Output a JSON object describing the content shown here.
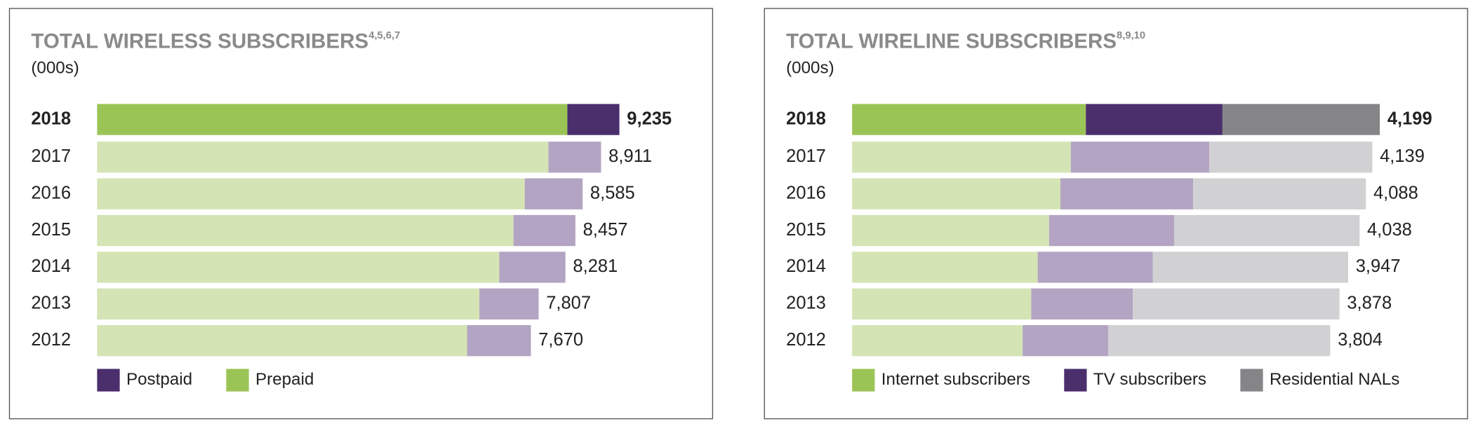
{
  "chart_data": [
    {
      "type": "bar",
      "orientation": "horizontal",
      "stacked": true,
      "title": "TOTAL WIRELESS SUBSCRIBERS",
      "title_notes": "4,5,6,7",
      "subtitle": "(000s)",
      "categories": [
        "2018",
        "2017",
        "2016",
        "2015",
        "2014",
        "2013",
        "2012"
      ],
      "series": [
        {
          "name": "Postpaid",
          "color": "#4b2e6c",
          "light_color": "#b4a4c3",
          "values": [
            920,
            930,
            1023,
            1095,
            1170,
            1048,
            1128
          ]
        },
        {
          "name": "Prepaid",
          "color": "#9bc456",
          "light_color": "#d4e4b4",
          "values": [
            8315,
            7981,
            7562,
            7362,
            7111,
            6759,
            6542
          ]
        }
      ],
      "stack_order": [
        1,
        0
      ],
      "totals": [
        9235,
        8911,
        8585,
        8457,
        8281,
        7807,
        7670
      ],
      "total_labels": [
        "9,235",
        "8,911",
        "8,585",
        "8,457",
        "8,281",
        "7,807",
        "7,670"
      ],
      "xlim": [
        0,
        10000
      ],
      "highlight": 0
    },
    {
      "type": "bar",
      "orientation": "horizontal",
      "stacked": true,
      "title": "TOTAL WIRELINE SUBSCRIBERS",
      "title_notes": "8,9,10",
      "subtitle": "(000s)",
      "categories": [
        "2018",
        "2017",
        "2016",
        "2015",
        "2014",
        "2013",
        "2012"
      ],
      "series": [
        {
          "name": "Internet subscribers",
          "color": "#9bc456",
          "light_color": "#d4e4b4",
          "values": [
            1860,
            1740,
            1657,
            1567,
            1477,
            1425,
            1357
          ]
        },
        {
          "name": "TV subscribers",
          "color": "#4b2e6c",
          "light_color": "#b4a4c3",
          "values": [
            1087,
            1102,
            1057,
            997,
            915,
            809,
            682
          ]
        },
        {
          "name": "Residential NALs",
          "color": "#858587",
          "light_color": "#d1d1d3",
          "values": [
            1252,
            1297,
            1374,
            1474,
            1555,
            1644,
            1765
          ]
        }
      ],
      "stack_order": [
        0,
        1,
        2
      ],
      "totals": [
        4199,
        4139,
        4088,
        4038,
        3947,
        3878,
        3804
      ],
      "total_labels": [
        "4,199",
        "4,139",
        "4,088",
        "4,038",
        "3,947",
        "3,878",
        "3,804"
      ],
      "xlim": [
        0,
        4500
      ],
      "highlight": 0
    }
  ]
}
